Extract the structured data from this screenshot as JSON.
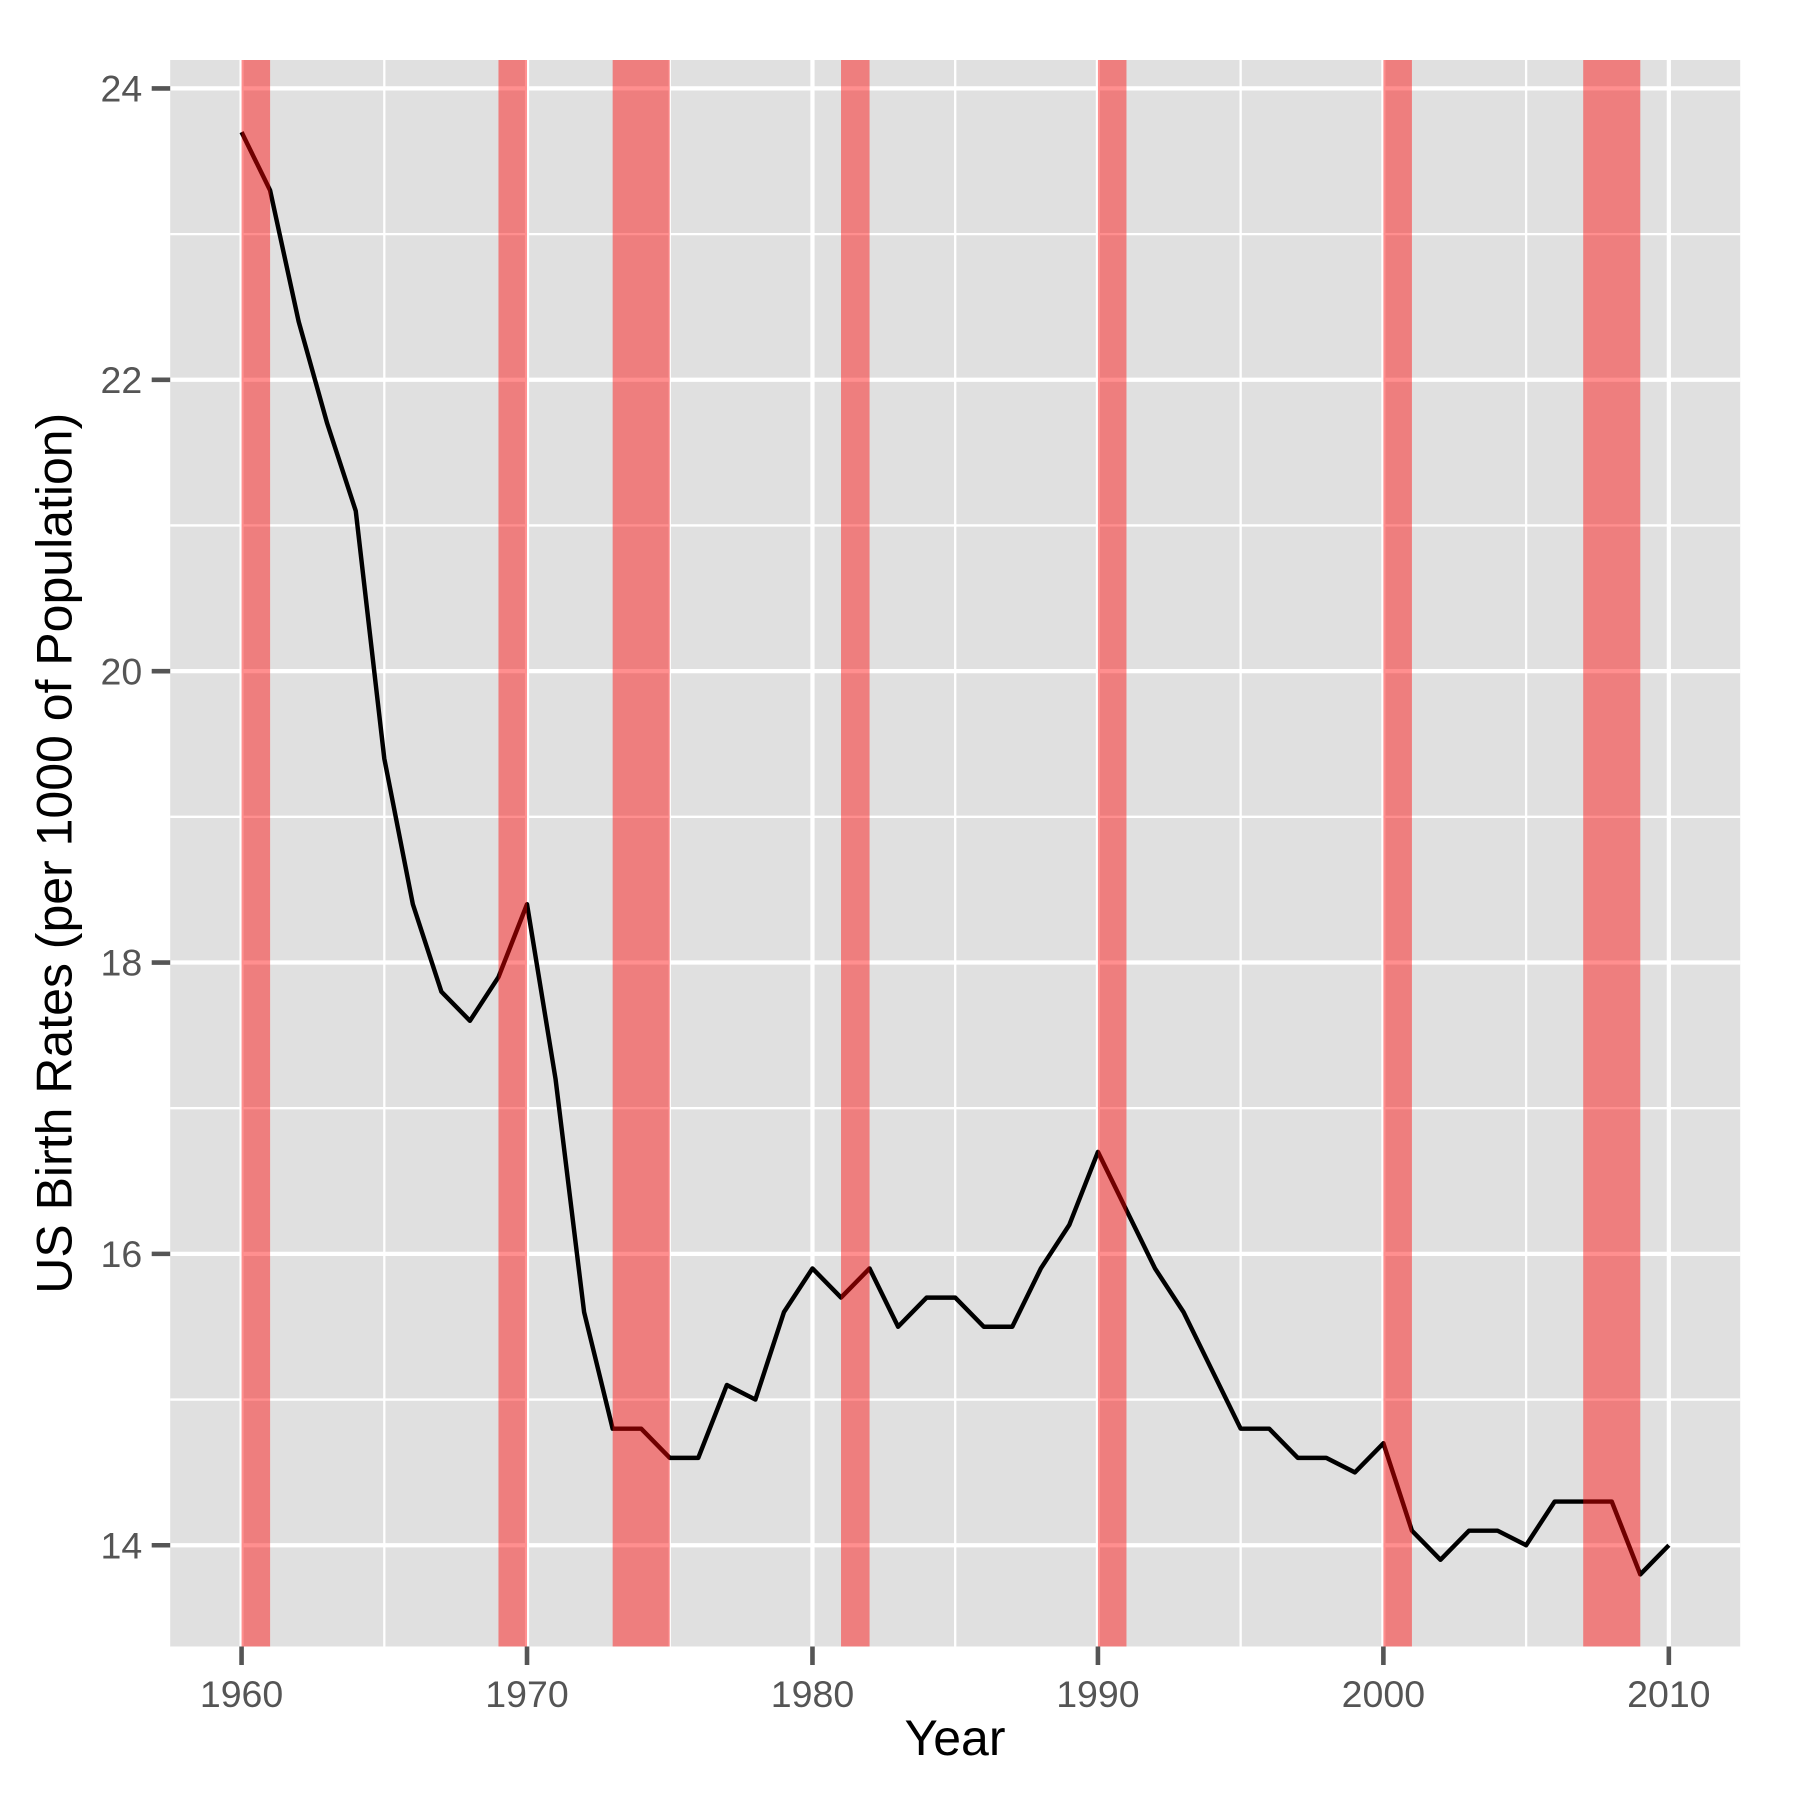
{
  "chart_data": {
    "type": "line",
    "title": "",
    "xlabel": "Year",
    "ylabel": "US Birth Rates (per 1000 of Population)",
    "x": [
      1960,
      1961,
      1962,
      1963,
      1964,
      1965,
      1966,
      1967,
      1968,
      1969,
      1970,
      1971,
      1972,
      1973,
      1974,
      1975,
      1976,
      1977,
      1978,
      1979,
      1980,
      1981,
      1982,
      1983,
      1984,
      1985,
      1986,
      1987,
      1988,
      1989,
      1990,
      1991,
      1992,
      1993,
      1994,
      1995,
      1996,
      1997,
      1998,
      1999,
      2000,
      2001,
      2002,
      2003,
      2004,
      2005,
      2006,
      2007,
      2008,
      2009,
      2010
    ],
    "values": [
      23.7,
      23.3,
      22.4,
      21.7,
      21.1,
      19.4,
      18.4,
      17.8,
      17.6,
      17.9,
      18.4,
      17.2,
      15.6,
      14.8,
      14.8,
      14.6,
      14.6,
      15.1,
      15.0,
      15.6,
      15.9,
      15.7,
      15.9,
      15.5,
      15.7,
      15.7,
      15.5,
      15.5,
      15.9,
      16.2,
      16.7,
      16.3,
      15.9,
      15.6,
      15.2,
      14.8,
      14.8,
      14.6,
      14.6,
      14.5,
      14.7,
      14.1,
      13.9,
      14.1,
      14.1,
      14.0,
      14.3,
      14.3,
      14.3,
      13.8,
      14.0
    ],
    "series_name": "US birth rate per 1000 of population",
    "recession_bands": [
      [
        1960,
        1961
      ],
      [
        1969,
        1970
      ],
      [
        1973,
        1975
      ],
      [
        1981,
        1982
      ],
      [
        1990,
        1991
      ],
      [
        2000,
        2001
      ],
      [
        2007,
        2009
      ]
    ],
    "xlim": [
      1957.5,
      2012.5
    ],
    "ylim": [
      13.305,
      24.195
    ],
    "x_ticks": [
      "1960",
      "1970",
      "1980",
      "1990",
      "2000",
      "2010"
    ],
    "x_tick_values": [
      1960,
      1970,
      1980,
      1990,
      2000,
      2010
    ],
    "x_minor_values": [
      1965,
      1975,
      1985,
      1995,
      2005
    ],
    "y_ticks": [
      "14",
      "16",
      "18",
      "20",
      "22",
      "24"
    ],
    "y_tick_values": [
      14,
      16,
      18,
      20,
      22,
      24
    ],
    "y_minor_values": [
      15,
      17,
      19,
      21,
      23
    ],
    "grid": "major and minor, white on gray panel",
    "legend_position": "none",
    "colors": {
      "line": "#000000",
      "recession_band_fill": "#FF0000",
      "recession_band_opacity": 0.44,
      "panel_background": "#E0E0E0",
      "gridline": "#FFFFFF",
      "tick_label": "#555555",
      "tick_mark": "#555555",
      "axis_title": "#000000",
      "page_background": "#FFFFFF"
    }
  }
}
